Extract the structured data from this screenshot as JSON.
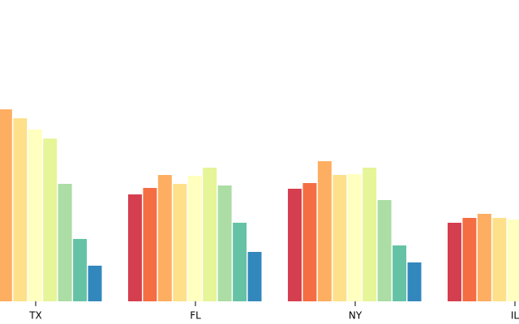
{
  "chart_data": {
    "type": "grouped-bar",
    "categories": [
      "TX",
      "FL",
      "NY",
      "IL"
    ],
    "ylim": [
      0,
      372
    ],
    "series": [
      {
        "color": "#d53e4f",
        "values": [
          null,
          132,
          139,
          97
        ]
      },
      {
        "color": "#f46d43",
        "values": [
          null,
          140,
          146,
          103
        ]
      },
      {
        "color": "#fdae61",
        "values": [
          237,
          156,
          173,
          108
        ]
      },
      {
        "color": "#fee08b",
        "values": [
          226,
          145,
          156,
          103
        ]
      },
      {
        "color": "#ffffbf",
        "values": [
          212,
          155,
          157,
          101
        ]
      },
      {
        "color": "#e6f598",
        "values": [
          201,
          165,
          165,
          null
        ]
      },
      {
        "color": "#abdda4",
        "values": [
          145,
          143,
          125,
          null
        ]
      },
      {
        "color": "#66c2a5",
        "values": [
          77,
          97,
          69,
          null
        ]
      },
      {
        "color": "#3288bd",
        "values": [
          44,
          61,
          48,
          null
        ]
      }
    ]
  }
}
